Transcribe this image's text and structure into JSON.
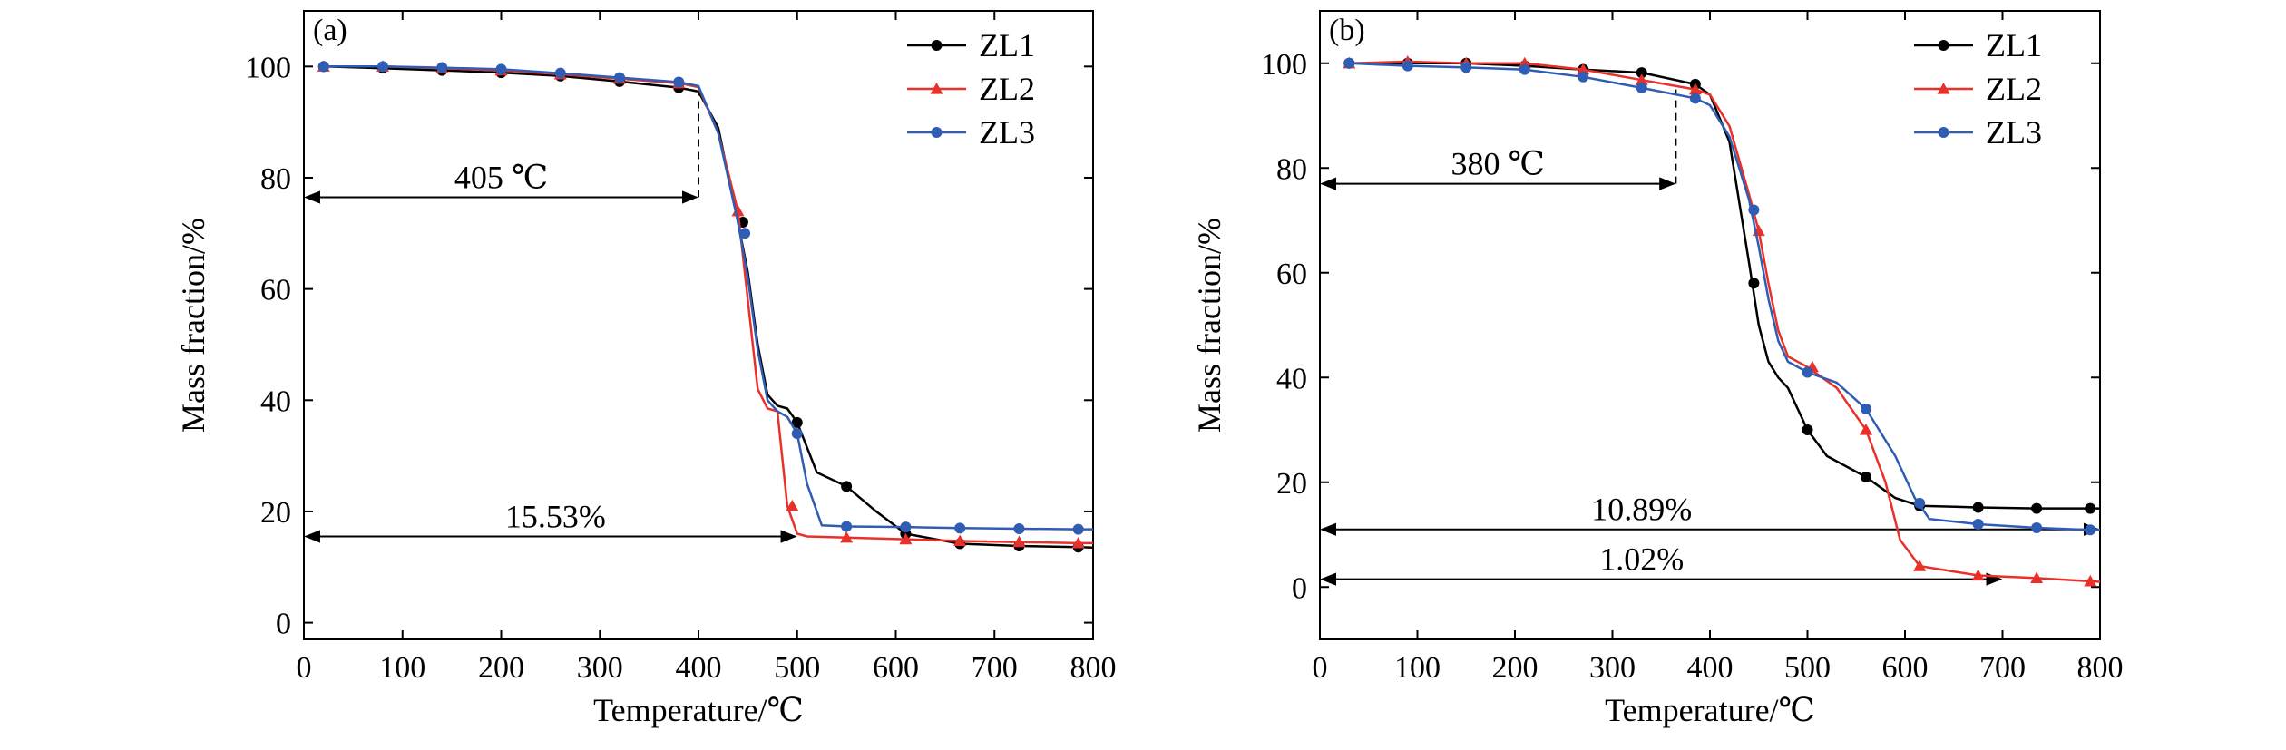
{
  "colors": {
    "ZL1": "#000000",
    "ZL2": "#e8312a",
    "ZL3": "#2f5db3"
  },
  "chart_data": [
    {
      "type": "line",
      "panel_label": "(a)",
      "xlabel": "Temperature/℃",
      "ylabel": "Mass fraction/%",
      "xlim": [
        0,
        800
      ],
      "ylim": [
        -3,
        110
      ],
      "xticks": [
        0,
        100,
        200,
        300,
        400,
        500,
        600,
        700,
        800
      ],
      "yticks": [
        0,
        20,
        40,
        60,
        80,
        100
      ],
      "grid": false,
      "legend": "top-right",
      "series": [
        {
          "name": "ZL1",
          "marker": "circle",
          "x": [
            20,
            80,
            140,
            200,
            260,
            320,
            380,
            400,
            420,
            440,
            450,
            460,
            470,
            480,
            490,
            500,
            520,
            550,
            580,
            610,
            665,
            725,
            785,
            800
          ],
          "y": [
            100,
            99.7,
            99.3,
            98.9,
            98.3,
            97.3,
            96.2,
            95.5,
            89,
            72,
            63,
            50,
            41,
            39,
            38.5,
            36,
            27,
            24.5,
            20,
            16,
            14.2,
            13.8,
            13.6,
            13.5
          ],
          "marker_x": [
            20,
            80,
            140,
            200,
            260,
            320,
            380,
            445,
            500,
            550,
            610,
            665,
            725,
            785
          ],
          "marker_y": [
            100,
            99.7,
            99.3,
            98.9,
            98.3,
            97.3,
            96.2,
            72,
            36,
            24.5,
            16,
            14.2,
            13.8,
            13.6
          ]
        },
        {
          "name": "ZL2",
          "marker": "triangle",
          "x": [
            20,
            80,
            140,
            200,
            260,
            320,
            380,
            400,
            420,
            440,
            450,
            460,
            470,
            480,
            490,
            500,
            510,
            550,
            610,
            665,
            725,
            785,
            800
          ],
          "y": [
            100,
            100,
            99.7,
            99.3,
            98.6,
            97.8,
            97,
            96.3,
            88,
            74,
            58,
            42,
            38.5,
            38,
            21,
            16,
            15.5,
            15.3,
            15,
            14.7,
            14.5,
            14.3,
            14.3
          ],
          "marker_x": [
            20,
            80,
            140,
            200,
            260,
            320,
            380,
            440,
            495,
            550,
            610,
            665,
            725,
            785
          ],
          "marker_y": [
            100,
            100,
            99.7,
            99.3,
            98.6,
            97.8,
            97,
            74,
            21,
            15.3,
            15,
            14.7,
            14.5,
            14.3
          ]
        },
        {
          "name": "ZL3",
          "marker": "circle",
          "x": [
            20,
            80,
            140,
            200,
            260,
            320,
            380,
            400,
            420,
            440,
            450,
            460,
            470,
            480,
            490,
            500,
            510,
            525,
            550,
            610,
            665,
            725,
            785,
            800
          ],
          "y": [
            100,
            100,
            99.8,
            99.5,
            98.8,
            98,
            97.2,
            96.5,
            88,
            72,
            62,
            49,
            40,
            38,
            37,
            34,
            25,
            17.5,
            17.3,
            17.2,
            17,
            16.9,
            16.8,
            16.8
          ],
          "marker_x": [
            20,
            80,
            140,
            200,
            260,
            320,
            380,
            447,
            500,
            550,
            610,
            665,
            725,
            785
          ],
          "marker_y": [
            100,
            100,
            99.8,
            99.5,
            98.8,
            98,
            97.2,
            70,
            34,
            17.3,
            17.2,
            17,
            16.9,
            16.8
          ]
        }
      ],
      "annotations": [
        {
          "text": "405 ℃",
          "type": "h-arrow",
          "x1": 0,
          "x2": 400,
          "y": 76.5,
          "vline_x": 400,
          "vline_y_top": 95.5
        },
        {
          "text": "15.53%",
          "type": "h-arrow",
          "x1": 0,
          "x2": 500,
          "y": 15.5
        }
      ]
    },
    {
      "type": "line",
      "panel_label": "(b)",
      "xlabel": "Temperature/℃",
      "ylabel": "Mass fraction/%",
      "xlim": [
        0,
        800
      ],
      "ylim": [
        -10,
        110
      ],
      "xticks": [
        0,
        100,
        200,
        300,
        400,
        500,
        600,
        700,
        800
      ],
      "yticks": [
        0,
        20,
        40,
        60,
        80,
        100
      ],
      "grid": false,
      "legend": "top-right",
      "series": [
        {
          "name": "ZL1",
          "marker": "circle",
          "x": [
            30,
            90,
            150,
            210,
            270,
            330,
            385,
            400,
            420,
            440,
            450,
            460,
            470,
            480,
            500,
            520,
            560,
            590,
            615,
            675,
            735,
            790,
            800
          ],
          "y": [
            100,
            100,
            100,
            99.5,
            98.8,
            98.2,
            96,
            94,
            85,
            62,
            50,
            43,
            40,
            38,
            30,
            25,
            21,
            17,
            15.5,
            15.2,
            15,
            15,
            15
          ],
          "marker_x": [
            30,
            90,
            150,
            210,
            270,
            330,
            385,
            445,
            500,
            560,
            615,
            675,
            735,
            790
          ],
          "marker_y": [
            100,
            100,
            100,
            99.5,
            98.8,
            98.2,
            96,
            58,
            30,
            21,
            15.5,
            15.2,
            15,
            15
          ]
        },
        {
          "name": "ZL2",
          "marker": "triangle",
          "x": [
            30,
            90,
            150,
            210,
            270,
            330,
            385,
            400,
            420,
            440,
            450,
            460,
            470,
            480,
            500,
            530,
            560,
            580,
            595,
            615,
            675,
            735,
            790,
            800
          ],
          "y": [
            100,
            100.3,
            100,
            100,
            98.8,
            96.8,
            95,
            94,
            88,
            75,
            68,
            58,
            49,
            44,
            42,
            38,
            30,
            20,
            9,
            4,
            2.2,
            1.7,
            1.1,
            1
          ],
          "marker_x": [
            30,
            90,
            150,
            210,
            270,
            330,
            385,
            450,
            505,
            560,
            615,
            675,
            735,
            790
          ],
          "marker_y": [
            100,
            100.3,
            100,
            100,
            98.8,
            96.8,
            95,
            68,
            42,
            30,
            4,
            2.2,
            1.7,
            1.1
          ]
        },
        {
          "name": "ZL3",
          "marker": "circle",
          "x": [
            30,
            90,
            150,
            210,
            270,
            330,
            385,
            400,
            420,
            440,
            450,
            460,
            470,
            480,
            500,
            530,
            560,
            590,
            610,
            625,
            675,
            735,
            790,
            800
          ],
          "y": [
            100,
            99.5,
            99.2,
            98.8,
            97.4,
            95.3,
            93.3,
            92,
            86,
            74,
            65,
            55,
            47,
            43,
            41,
            39,
            34,
            25,
            17,
            13,
            12,
            11.3,
            10.9,
            10.9
          ],
          "marker_x": [
            30,
            90,
            150,
            210,
            270,
            330,
            385,
            445,
            500,
            560,
            615,
            675,
            735,
            790
          ],
          "marker_y": [
            100,
            99.5,
            99.2,
            98.8,
            97.4,
            95.3,
            93.3,
            72,
            41,
            34,
            16,
            12,
            11.3,
            10.9
          ]
        }
      ],
      "annotations": [
        {
          "text": "380 ℃",
          "type": "h-arrow",
          "x1": 0,
          "x2": 365,
          "y": 77,
          "vline_x": 365,
          "vline_y_top": 95
        },
        {
          "text": "10.89%",
          "type": "h-arrow",
          "x1": 0,
          "x2": 800,
          "y": 11
        },
        {
          "text": "1.02%",
          "type": "h-arrow",
          "x1": 0,
          "x2": 700,
          "y": 1.5
        }
      ]
    }
  ]
}
